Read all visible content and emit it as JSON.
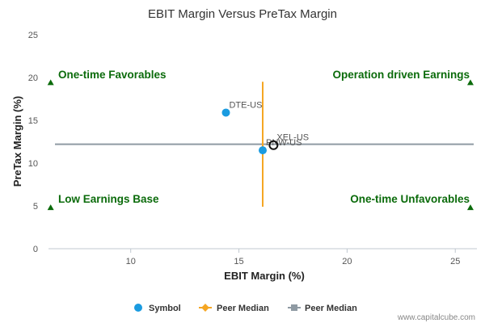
{
  "chart_data": {
    "type": "scatter",
    "title": "EBIT Margin Versus PreTax Margin",
    "xlabel": "EBIT Margin (%)",
    "ylabel": "PreTax Margin (%)",
    "xlim": [
      6.2,
      26
    ],
    "ylim": [
      0,
      25
    ],
    "x_ticks": [
      10,
      15,
      20,
      25
    ],
    "y_ticks": [
      0,
      5,
      10,
      15,
      20,
      25
    ],
    "grid": false,
    "points": [
      {
        "label": "DTE-US",
        "x": 14.4,
        "y": 15.9,
        "style": "symbol"
      },
      {
        "label": "PNW-US",
        "x": 16.1,
        "y": 11.5,
        "style": "symbol"
      },
      {
        "label": "XEL-US",
        "x": 16.6,
        "y": 12.1,
        "style": "highlight"
      }
    ],
    "peer_median_x": 16.1,
    "peer_median_x_range": [
      4.9,
      19.5
    ],
    "peer_median_y": 12.2,
    "quadrants": [
      {
        "text": "One-time Favorables",
        "corner": "top-left",
        "marker_x": 6.3,
        "marker_y": 19.4
      },
      {
        "text": "Operation driven Earnings",
        "corner": "top-right",
        "marker_x": 25.7,
        "marker_y": 19.4
      },
      {
        "text": "Low Earnings Base",
        "corner": "bottom-left",
        "marker_x": 6.3,
        "marker_y": 4.8
      },
      {
        "text": "One-time Unfavorables",
        "corner": "bottom-right",
        "marker_x": 25.7,
        "marker_y": 4.8
      }
    ],
    "colors": {
      "symbol": "#1a9be0",
      "peer_median_x": "#f5a623",
      "peer_median_y": "#8f9aa3",
      "quadrant_text": "#0b6b0b"
    },
    "legend": {
      "position": "bottom",
      "items": [
        {
          "label": "Symbol",
          "kind": "circle"
        },
        {
          "label": "Peer Median",
          "kind": "orange-line"
        },
        {
          "label": "Peer Median",
          "kind": "gray-line"
        }
      ]
    }
  },
  "credit": "www.capitalcube.com"
}
